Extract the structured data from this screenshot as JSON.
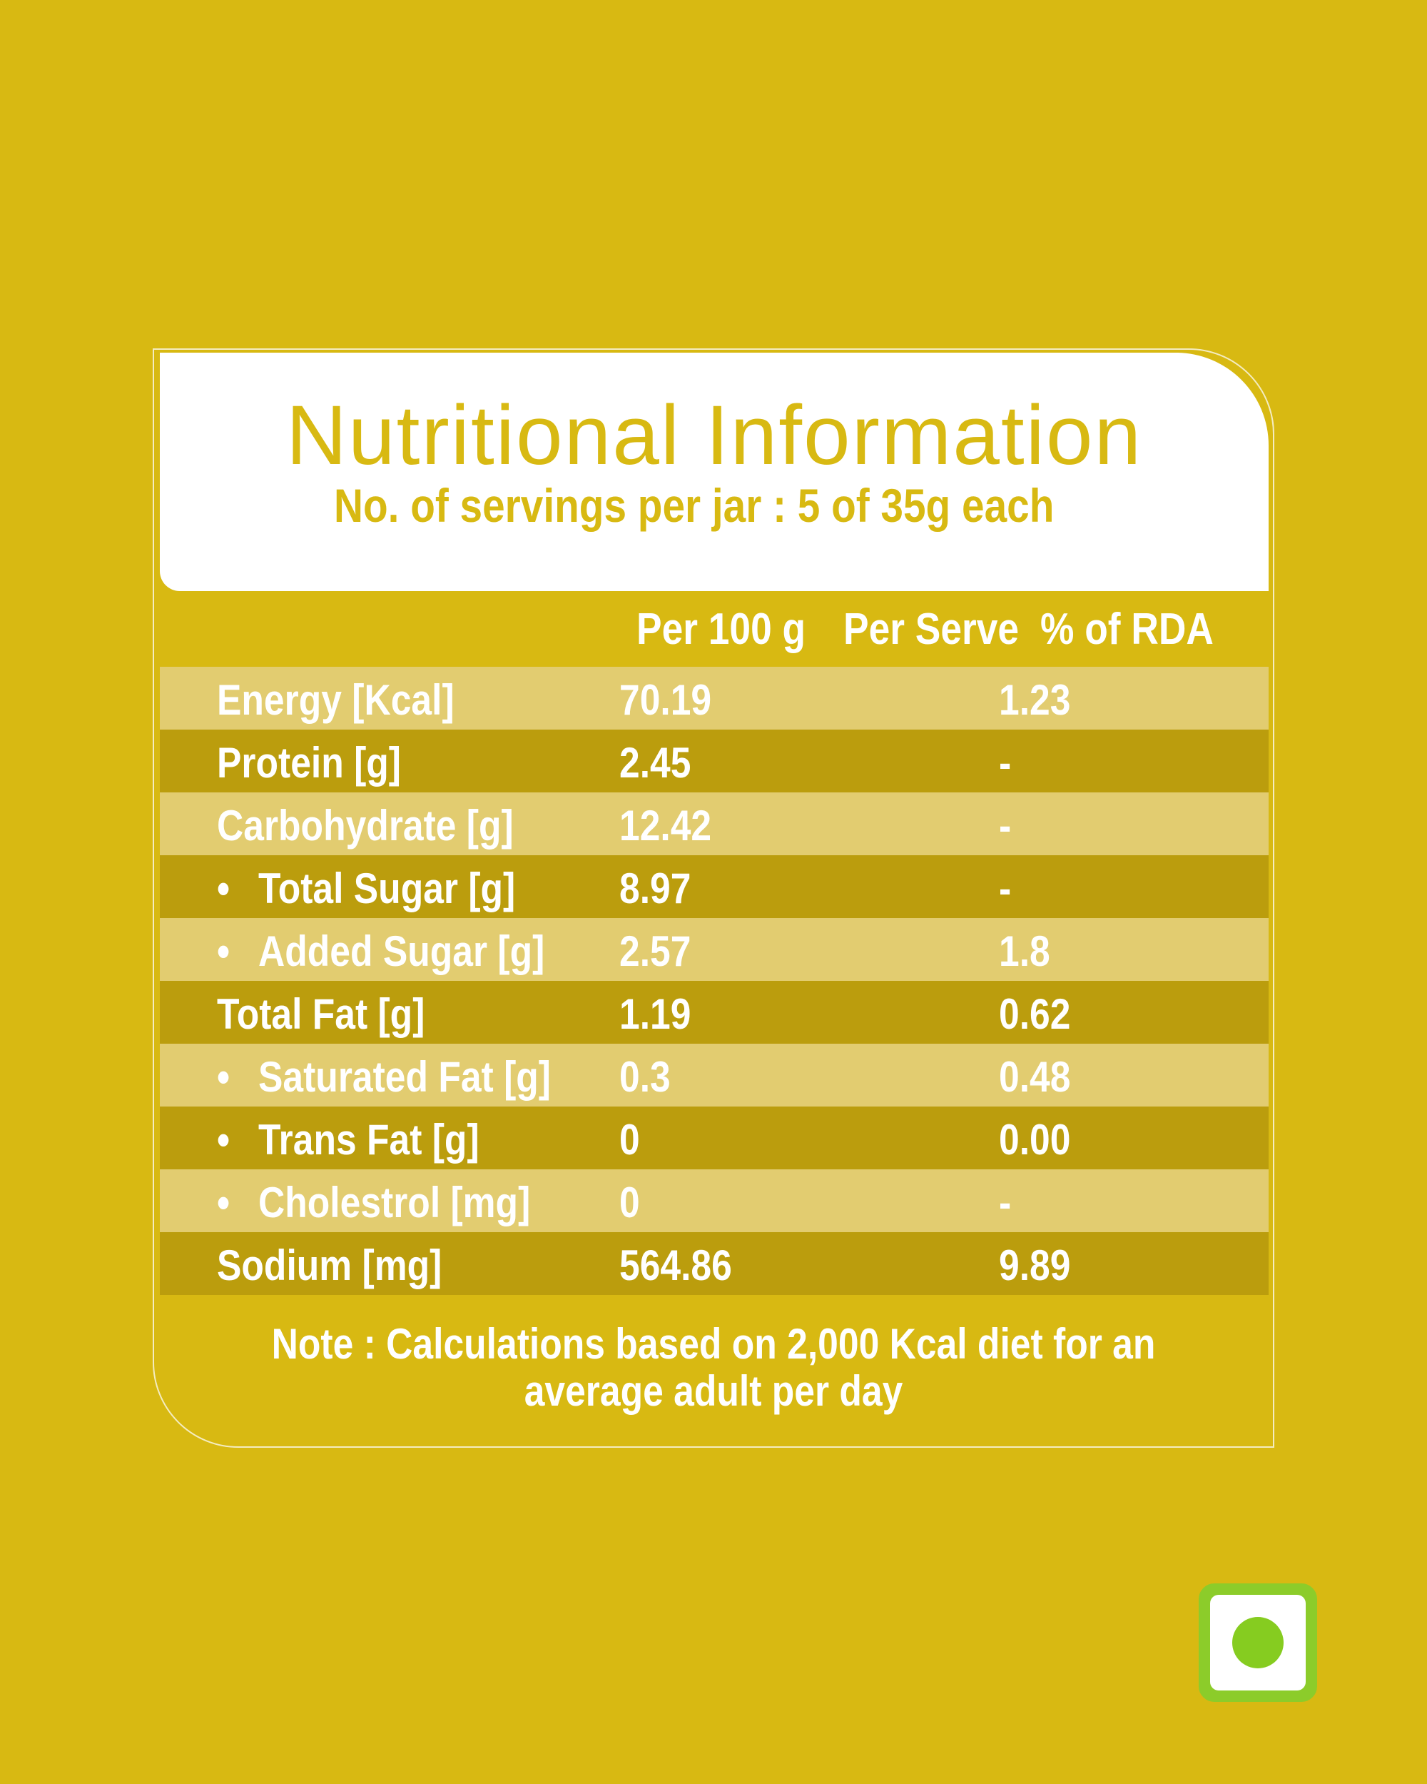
{
  "title": "Nutritional Information",
  "subtitle": "No. of servings per jar : 5 of 35g each",
  "columns": {
    "per100": "Per 100 g",
    "perServe": "Per  Serve",
    "rda": "%  of RDA"
  },
  "rows": [
    {
      "label": "Energy [Kcal]",
      "per100": "70.19",
      "rda": "1.23",
      "bullet": ""
    },
    {
      "label": "Protein [g]",
      "per100": "2.45",
      "rda": "-",
      "bullet": ""
    },
    {
      "label": "Carbohydrate [g]",
      "per100": "12.42",
      "rda": "-",
      "bullet": ""
    },
    {
      "label": "Total Sugar [g]",
      "per100": "8.97",
      "rda": "-",
      "bullet": "•"
    },
    {
      "label": "Added Sugar [g]",
      "per100": "2.57",
      "rda": "1.8",
      "bullet": "•"
    },
    {
      "label": "Total Fat [g]",
      "per100": "1.19",
      "rda": "0.62",
      "bullet": ""
    },
    {
      "label": "Saturated Fat [g]",
      "per100": "0.3",
      "rda": "0.48",
      "bullet": "•"
    },
    {
      "label": "Trans Fat [g]",
      "per100": "0",
      "rda": "0.00",
      "bullet": "•"
    },
    {
      "label": "Cholestrol [mg]",
      "per100": "0",
      "rda": "-",
      "bullet": "•"
    },
    {
      "label": "Sodium [mg]",
      "per100": "564.86",
      "rda": "9.89",
      "bullet": ""
    }
  ],
  "note": {
    "line1": "Note :  Calculations based on 2,000 Kcal diet for an",
    "line2": "average adult per day"
  },
  "colors": {
    "background": "#d8b912",
    "row_light": "#e2cc70",
    "row_dark": "#bb9d0d",
    "veg_mark": "#8ccc2a"
  },
  "icons": {
    "veg_mark": "veg-symbol-icon"
  }
}
